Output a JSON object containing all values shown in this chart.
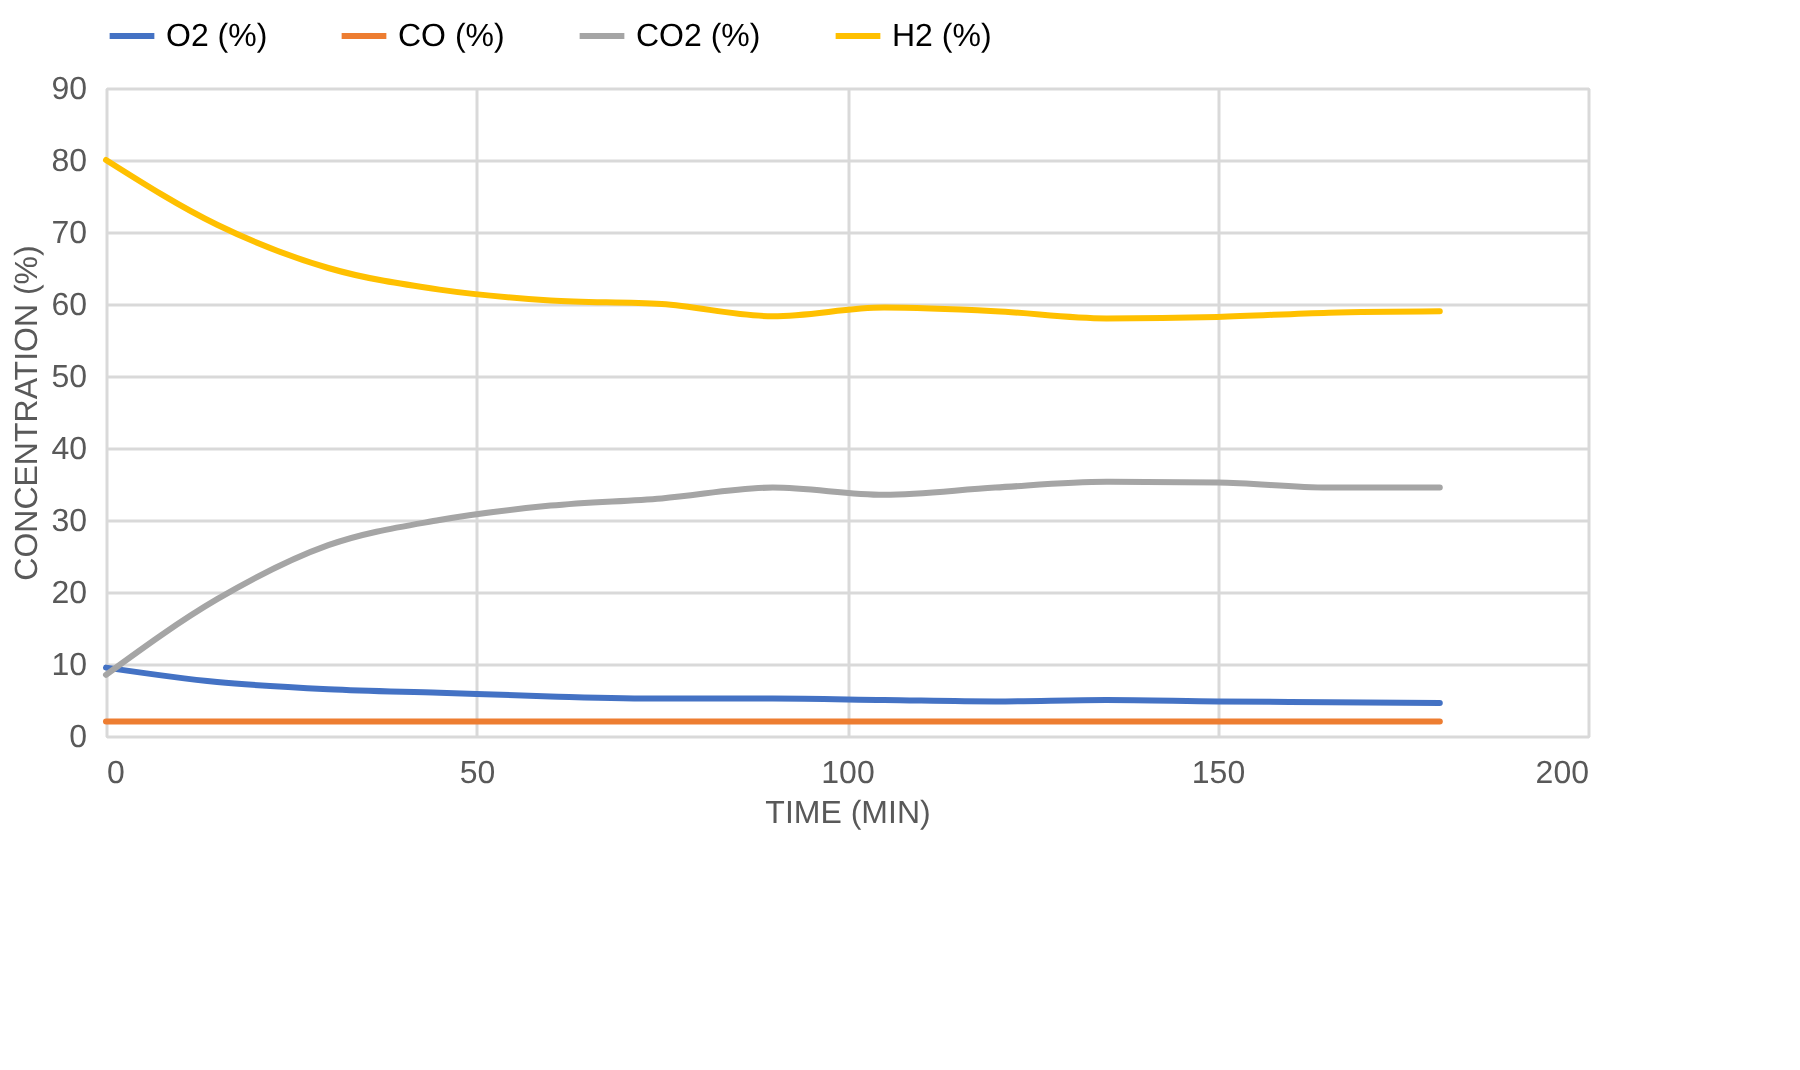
{
  "chart_data": {
    "type": "line",
    "xlabel": "TIME (MIN)",
    "ylabel": "CONCENTRATION (%)",
    "x": [
      0,
      15,
      30,
      45,
      60,
      75,
      90,
      105,
      120,
      135,
      150,
      165,
      180
    ],
    "series": [
      {
        "name": "O2 (%)",
        "color": "#4472c4",
        "values": [
          9.5,
          7.5,
          6.5,
          6,
          5.5,
          5.2,
          5.2,
          5,
          4.8,
          5,
          4.8,
          4.7,
          4.6
        ]
      },
      {
        "name": "CO (%)",
        "color": "#ed7d31",
        "values": [
          2,
          2,
          2,
          2,
          2,
          2,
          2,
          2,
          2,
          2,
          2,
          2,
          2
        ]
      },
      {
        "name": "CO2 (%)",
        "color": "#a5a5a5",
        "values": [
          8.5,
          19,
          26.5,
          30,
          32,
          33,
          34.5,
          33.5,
          34.5,
          35.3,
          35.2,
          34.5,
          34.5
        ]
      },
      {
        "name": "H2 (%)",
        "color": "#ffc000",
        "values": [
          80,
          71,
          65,
          62,
          60.5,
          60,
          58.3,
          59.5,
          59,
          58,
          58.2,
          58.8,
          59
        ]
      }
    ],
    "xlim": [
      0,
      200
    ],
    "xticks": [
      0,
      50,
      100,
      150,
      200
    ],
    "ylim": [
      0,
      90
    ],
    "yticks": [
      0,
      10,
      20,
      30,
      40,
      50,
      60,
      70,
      80,
      90
    ],
    "grid": true,
    "legend": "top",
    "marker": "none",
    "line_style": "solid"
  }
}
